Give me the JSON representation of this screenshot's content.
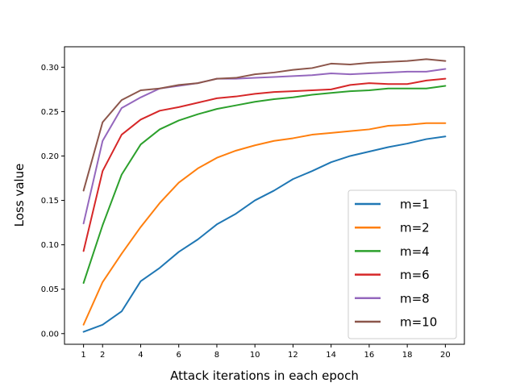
{
  "chart_data": {
    "type": "line",
    "xlabel": "Attack iterations in each epoch",
    "ylabel": "Loss value",
    "xlim": [
      0.0,
      21.0
    ],
    "ylim": [
      -0.012,
      0.323
    ],
    "x_ticks": [
      1,
      2,
      4,
      6,
      8,
      10,
      12,
      14,
      16,
      18,
      20
    ],
    "x_tick_labels": [
      "1",
      "2",
      "4",
      "6",
      "8",
      "10",
      "12",
      "14",
      "16",
      "18",
      "20"
    ],
    "y_ticks": [
      0.0,
      0.05,
      0.1,
      0.15,
      0.2,
      0.25,
      0.3
    ],
    "y_tick_labels": [
      "0.00",
      "0.05",
      "0.10",
      "0.15",
      "0.20",
      "0.25",
      "0.30"
    ],
    "grid": false,
    "legend_position": "lower-right",
    "x": [
      1,
      2,
      3,
      4,
      5,
      6,
      7,
      8,
      9,
      10,
      11,
      12,
      13,
      14,
      15,
      16,
      17,
      18,
      19,
      20
    ],
    "series": [
      {
        "name": "m=1",
        "color": "#1f77b4",
        "values": [
          0.002,
          0.01,
          0.025,
          0.059,
          0.074,
          0.092,
          0.106,
          0.123,
          0.135,
          0.15,
          0.161,
          0.174,
          0.183,
          0.193,
          0.2,
          0.205,
          0.21,
          0.214,
          0.219,
          0.222
        ]
      },
      {
        "name": "m=2",
        "color": "#ff7f0e",
        "values": [
          0.01,
          0.058,
          0.09,
          0.12,
          0.147,
          0.17,
          0.186,
          0.198,
          0.206,
          0.212,
          0.217,
          0.22,
          0.224,
          0.226,
          0.228,
          0.23,
          0.234,
          0.235,
          0.237,
          0.237
        ]
      },
      {
        "name": "m=4",
        "color": "#2ca02c",
        "values": [
          0.057,
          0.122,
          0.179,
          0.213,
          0.23,
          0.24,
          0.247,
          0.253,
          0.257,
          0.261,
          0.264,
          0.266,
          0.269,
          0.271,
          0.273,
          0.274,
          0.276,
          0.276,
          0.276,
          0.279
        ]
      },
      {
        "name": "m=6",
        "color": "#d62728",
        "values": [
          0.093,
          0.183,
          0.224,
          0.241,
          0.251,
          0.255,
          0.26,
          0.265,
          0.267,
          0.27,
          0.272,
          0.273,
          0.274,
          0.275,
          0.28,
          0.282,
          0.281,
          0.281,
          0.285,
          0.287
        ]
      },
      {
        "name": "m=8",
        "color": "#9467bd",
        "values": [
          0.124,
          0.217,
          0.254,
          0.266,
          0.276,
          0.279,
          0.282,
          0.287,
          0.287,
          0.288,
          0.289,
          0.29,
          0.291,
          0.293,
          0.292,
          0.293,
          0.294,
          0.295,
          0.295,
          0.298
        ]
      },
      {
        "name": "m=10",
        "color": "#8c564b",
        "values": [
          0.161,
          0.238,
          0.263,
          0.274,
          0.276,
          0.28,
          0.282,
          0.287,
          0.288,
          0.292,
          0.294,
          0.297,
          0.299,
          0.304,
          0.303,
          0.305,
          0.306,
          0.307,
          0.309,
          0.307
        ]
      }
    ]
  }
}
